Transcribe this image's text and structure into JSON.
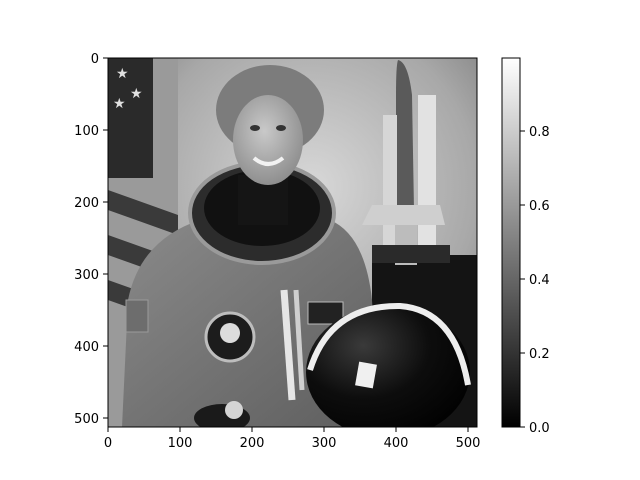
{
  "figure": {
    "image_alt": "grayscale portrait of astronaut in spacesuit with flag and space shuttle model",
    "x_axis": {
      "ticks": [
        "0",
        "100",
        "200",
        "300",
        "400",
        "500"
      ]
    },
    "y_axis": {
      "ticks": [
        "0",
        "100",
        "200",
        "300",
        "400",
        "500"
      ]
    },
    "colorbar": {
      "colormap": "gray",
      "ticks": [
        "0.0",
        "0.2",
        "0.4",
        "0.6",
        "0.8"
      ]
    },
    "colors": {
      "background": "#ffffff",
      "axis": "#000000"
    }
  }
}
